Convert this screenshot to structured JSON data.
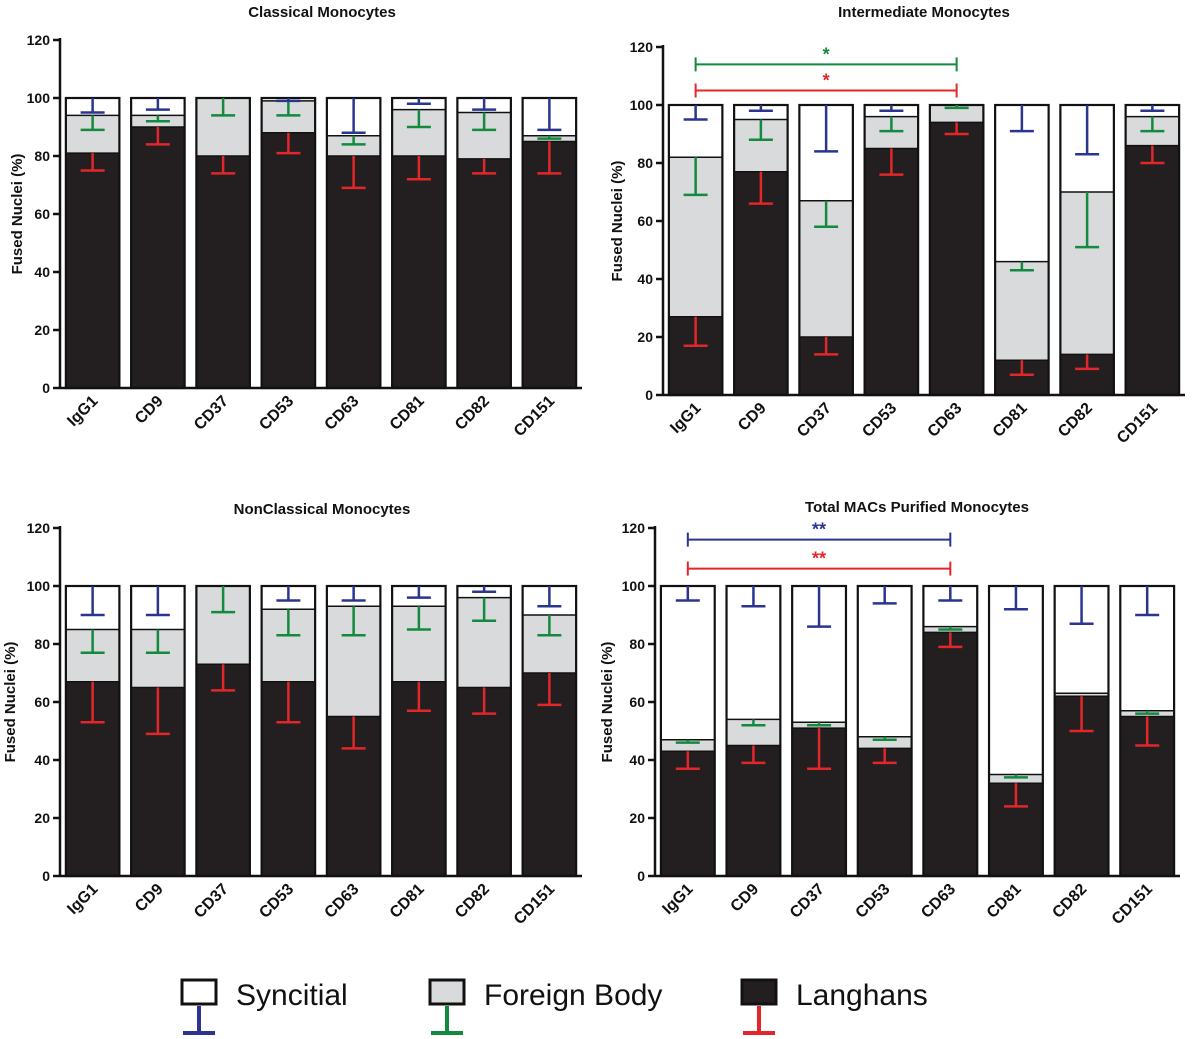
{
  "colors": {
    "syncitial_fill": "#ffffff",
    "foreign_body_fill": "#d9dadb",
    "langhans_fill": "#231f20",
    "syncitial_err": "#2b3590",
    "foreign_body_err": "#138a3e",
    "langhans_err": "#e3262a",
    "outline": "#111111"
  },
  "legend": [
    {
      "label": "Syncitial",
      "fill": "#ffffff",
      "err": "#2b3590"
    },
    {
      "label": "Foreign Body",
      "fill": "#d9dadb",
      "err": "#138a3e"
    },
    {
      "label": "Langhans",
      "fill": "#231f20",
      "err": "#e3262a"
    }
  ],
  "chart_data": [
    {
      "type": "bar",
      "stacked": true,
      "title": "Classical Monocytes",
      "ylabel": "Fused Nuclei (%)",
      "xlabel": "",
      "ylim": [
        0,
        120
      ],
      "yticks": [
        0,
        20,
        40,
        60,
        80,
        100,
        120
      ],
      "categories": [
        "IgG1",
        "CD9",
        "CD37",
        "CD53",
        "CD63",
        "CD81",
        "CD82",
        "CD151"
      ],
      "series": [
        {
          "name": "Langhans",
          "values": [
            81,
            90,
            80,
            88,
            80,
            80,
            79,
            85
          ],
          "err": [
            6,
            6,
            6,
            7,
            11,
            8,
            5,
            11
          ],
          "err_dir": "down"
        },
        {
          "name": "Foreign Body",
          "values": [
            13,
            4,
            20,
            11,
            7,
            16,
            16,
            2
          ],
          "err": [
            5,
            2,
            6,
            5,
            3,
            6,
            6,
            1
          ],
          "err_dir": "down"
        },
        {
          "name": "Syncitial",
          "values": [
            6,
            6,
            0,
            1,
            13,
            4,
            5,
            13
          ],
          "err": [
            5,
            4,
            0,
            1,
            12,
            2,
            4,
            11
          ],
          "err_dir": "down"
        }
      ],
      "significance": []
    },
    {
      "type": "bar",
      "stacked": true,
      "title": "Intermediate Monocytes",
      "ylabel": "Fused Nuclei (%)",
      "xlabel": "",
      "ylim": [
        0,
        120
      ],
      "yticks": [
        0,
        20,
        40,
        60,
        80,
        100,
        120
      ],
      "categories": [
        "IgG1",
        "CD9",
        "CD37",
        "CD53",
        "CD63",
        "CD81",
        "CD82",
        "CD151"
      ],
      "series": [
        {
          "name": "Langhans",
          "values": [
            27,
            77,
            20,
            85,
            94,
            12,
            14,
            86
          ],
          "err": [
            10,
            11,
            6,
            9,
            4,
            5,
            5,
            6
          ],
          "err_dir": "down"
        },
        {
          "name": "Foreign Body",
          "values": [
            55,
            18,
            47,
            11,
            6,
            34,
            56,
            10
          ],
          "err": [
            13,
            7,
            9,
            5,
            1,
            3,
            19,
            5
          ],
          "err_dir": "down"
        },
        {
          "name": "Syncitial",
          "values": [
            18,
            5,
            33,
            4,
            0,
            54,
            30,
            4
          ],
          "err": [
            5,
            2,
            16,
            2,
            0,
            9,
            17,
            2
          ],
          "err_dir": "down"
        }
      ],
      "significance": [
        {
          "from": "IgG1",
          "to": "CD63",
          "y": 114,
          "label": "*",
          "color": "#138a3e"
        },
        {
          "from": "IgG1",
          "to": "CD63",
          "y": 105,
          "label": "*",
          "color": "#e3262a"
        }
      ]
    },
    {
      "type": "bar",
      "stacked": true,
      "title": "NonClassical Monocytes",
      "ylabel": "Fused Nuclei (%)",
      "xlabel": "",
      "ylim": [
        0,
        120
      ],
      "yticks": [
        0,
        20,
        40,
        60,
        80,
        100,
        120
      ],
      "categories": [
        "IgG1",
        "CD9",
        "CD37",
        "CD53",
        "CD63",
        "CD81",
        "CD82",
        "CD151"
      ],
      "series": [
        {
          "name": "Langhans",
          "values": [
            67,
            65,
            73,
            67,
            55,
            67,
            65,
            70
          ],
          "err": [
            14,
            16,
            9,
            14,
            11,
            10,
            9,
            11
          ],
          "err_dir": "down"
        },
        {
          "name": "Foreign Body",
          "values": [
            18,
            20,
            27,
            25,
            38,
            26,
            31,
            20
          ],
          "err": [
            8,
            8,
            9,
            9,
            10,
            8,
            8,
            7
          ],
          "err_dir": "down"
        },
        {
          "name": "Syncitial",
          "values": [
            15,
            15,
            0,
            8,
            7,
            7,
            4,
            10
          ],
          "err": [
            10,
            10,
            0,
            5,
            5,
            4,
            2,
            7
          ],
          "err_dir": "down"
        }
      ],
      "significance": []
    },
    {
      "type": "bar",
      "stacked": true,
      "title": "Total MACs Purified Monocytes",
      "ylabel": "Fused Nuclei (%)",
      "xlabel": "",
      "ylim": [
        0,
        120
      ],
      "yticks": [
        0,
        20,
        40,
        60,
        80,
        100,
        120
      ],
      "categories": [
        "IgG1",
        "CD9",
        "CD37",
        "CD53",
        "CD63",
        "CD81",
        "CD82",
        "CD151"
      ],
      "series": [
        {
          "name": "Langhans",
          "values": [
            43,
            45,
            51,
            44,
            84,
            32,
            62,
            55
          ],
          "err": [
            6,
            6,
            14,
            5,
            5,
            8,
            12,
            10
          ],
          "err_dir": "down"
        },
        {
          "name": "Foreign Body",
          "values": [
            4,
            9,
            2,
            4,
            2,
            3,
            1,
            2
          ],
          "err": [
            1,
            2,
            1,
            1,
            1,
            1,
            0,
            1
          ],
          "err_dir": "down"
        },
        {
          "name": "Syncitial",
          "values": [
            53,
            46,
            47,
            52,
            14,
            65,
            37,
            43
          ],
          "err": [
            5,
            7,
            14,
            6,
            5,
            8,
            13,
            10
          ],
          "err_dir": "down"
        }
      ],
      "significance": [
        {
          "from": "IgG1",
          "to": "CD63",
          "y": 116,
          "label": "**",
          "color": "#2b3590"
        },
        {
          "from": "IgG1",
          "to": "CD63",
          "y": 106,
          "label": "**",
          "color": "#e3262a"
        }
      ]
    }
  ]
}
